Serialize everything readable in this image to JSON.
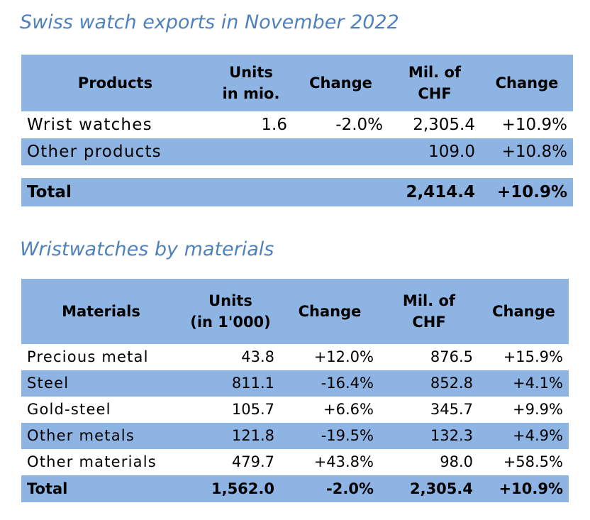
{
  "chart_data": [
    {
      "type": "table",
      "title": "Swiss watch exports in November 2022",
      "columns": [
        "Products",
        "Units in mio.",
        "Change",
        "Mil. of CHF",
        "Change"
      ],
      "header_lines": [
        [
          "Products"
        ],
        [
          "Units",
          "in mio."
        ],
        [
          "Change"
        ],
        [
          "Mil. of",
          "CHF"
        ],
        [
          "Change"
        ]
      ],
      "rows": [
        [
          "Wrist watches",
          "1.6",
          "-2.0%",
          "2,305.4",
          "+10.9%"
        ],
        [
          "Other products",
          "",
          "",
          "109.0",
          "+10.8%"
        ]
      ],
      "total": [
        "Total",
        "",
        "",
        "2,414.4",
        "+10.9%"
      ]
    },
    {
      "type": "table",
      "title": "Wristwatches by materials",
      "columns": [
        "Materials",
        "Units (in 1'000)",
        "Change",
        "Mil. of CHF",
        "Change"
      ],
      "header_lines": [
        [
          "Materials"
        ],
        [
          "Units",
          "(in 1'000)"
        ],
        [
          "Change"
        ],
        [
          "Mil. of",
          "CHF"
        ],
        [
          "Change"
        ]
      ],
      "rows": [
        [
          "Precious metal",
          "43.8",
          "+12.0%",
          "876.5",
          "+15.9%"
        ],
        [
          "Steel",
          "811.1",
          "-16.4%",
          "852.8",
          "+4.1%"
        ],
        [
          "Gold-steel",
          "105.7",
          "+6.6%",
          "345.7",
          "+9.9%"
        ],
        [
          "Other metals",
          "121.8",
          "-19.5%",
          "132.3",
          "+4.9%"
        ],
        [
          "Other materials",
          "479.7",
          "+43.8%",
          "98.0",
          "+58.5%"
        ]
      ],
      "total": [
        "Total",
        "1,562.0",
        "-2.0%",
        "2,305.4",
        "+10.9%"
      ]
    }
  ],
  "colors": {
    "title": "#4f81bd",
    "band": "#8db4e2",
    "text": "#000000"
  }
}
